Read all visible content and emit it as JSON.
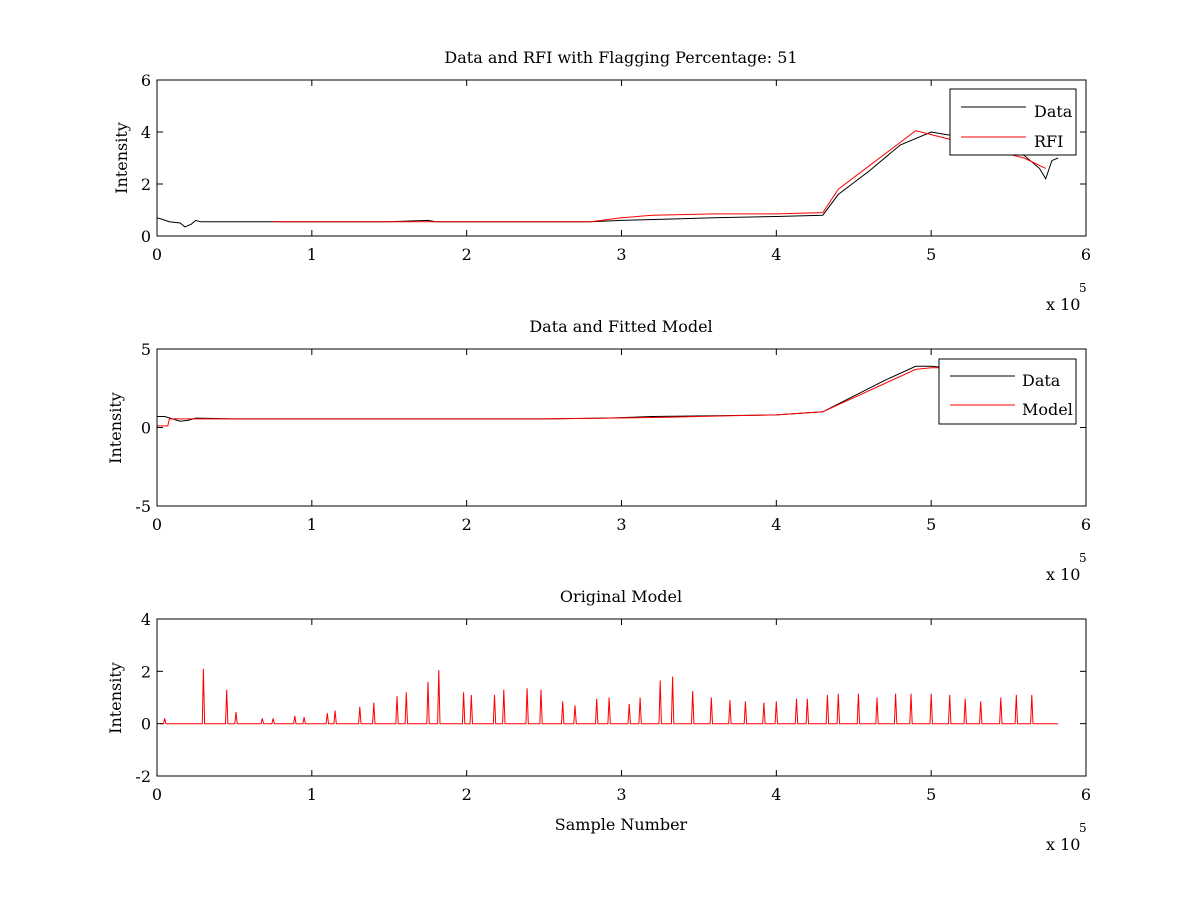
{
  "chart_data": [
    {
      "type": "line",
      "title": "Data and RFI with Flagging Percentage: 51",
      "xlabel": "",
      "ylabel": "Intensity",
      "xlim": [
        0,
        600000
      ],
      "ylim": [
        0,
        6
      ],
      "xticks": [
        "0",
        "1",
        "2",
        "3",
        "4",
        "5",
        "6"
      ],
      "yticks": [
        "0",
        "2",
        "4",
        "6"
      ],
      "x_multiplier": "x 10",
      "x_exponent": "5",
      "legend_position": "top-right",
      "series": [
        {
          "name": "Data",
          "color": "#000000",
          "x": [
            0,
            3000,
            8000,
            15000,
            18000,
            22000,
            25000,
            28000,
            50000,
            80000,
            100000,
            120000,
            150000,
            175000,
            180000,
            200000,
            230000,
            260000,
            280000,
            300000,
            330000,
            360000,
            400000,
            430000,
            440000,
            460000,
            480000,
            500000,
            520000,
            540000,
            560000,
            570000,
            574000,
            578000,
            582000
          ],
          "y": [
            0.7,
            0.65,
            0.55,
            0.5,
            0.35,
            0.45,
            0.6,
            0.55,
            0.55,
            0.55,
            0.55,
            0.55,
            0.55,
            0.6,
            0.55,
            0.55,
            0.55,
            0.55,
            0.55,
            0.6,
            0.65,
            0.7,
            0.75,
            0.8,
            1.6,
            2.5,
            3.5,
            4.0,
            3.8,
            3.4,
            3.1,
            2.6,
            2.2,
            2.9,
            3.0
          ]
        },
        {
          "name": "RFI",
          "color": "#ff0000",
          "x": [
            75000,
            90000,
            190000,
            200000,
            280000,
            300000,
            320000,
            360000,
            400000,
            430000,
            440000,
            460000,
            480000,
            490000,
            500000,
            520000,
            540000,
            560000,
            574000
          ],
          "y": [
            0.55,
            0.55,
            0.55,
            0.55,
            0.55,
            0.7,
            0.8,
            0.85,
            0.85,
            0.9,
            1.8,
            2.7,
            3.6,
            4.05,
            3.9,
            3.6,
            3.3,
            3.0,
            2.6
          ]
        }
      ]
    },
    {
      "type": "line",
      "title": "Data and Fitted Model",
      "xlabel": "",
      "ylabel": "Intensity",
      "xlim": [
        0,
        600000
      ],
      "ylim": [
        -5,
        5
      ],
      "xticks": [
        "0",
        "1",
        "2",
        "3",
        "4",
        "5",
        "6"
      ],
      "yticks": [
        "-5",
        "0",
        "5"
      ],
      "x_multiplier": "x 10",
      "x_exponent": "5",
      "legend_position": "top-right",
      "series": [
        {
          "name": "Data",
          "color": "#000000",
          "x": [
            0,
            5000,
            15000,
            20000,
            25000,
            50000,
            100000,
            150000,
            200000,
            250000,
            290000,
            320000,
            360000,
            400000,
            430000,
            450000,
            470000,
            490000,
            500000,
            510000
          ],
          "y": [
            0.7,
            0.7,
            0.4,
            0.45,
            0.6,
            0.55,
            0.55,
            0.55,
            0.55,
            0.55,
            0.6,
            0.7,
            0.75,
            0.8,
            1.0,
            2.0,
            3.0,
            3.9,
            3.9,
            3.8
          ]
        },
        {
          "name": "Model",
          "color": "#ff0000",
          "x": [
            0,
            7000,
            8000,
            50000,
            100000,
            150000,
            200000,
            250000,
            290000,
            330000,
            370000,
            400000,
            430000,
            450000,
            470000,
            490000,
            500000,
            510000
          ],
          "y": [
            0.1,
            0.1,
            0.55,
            0.55,
            0.55,
            0.55,
            0.55,
            0.55,
            0.6,
            0.65,
            0.75,
            0.8,
            1.0,
            1.9,
            2.8,
            3.7,
            3.8,
            3.8
          ]
        }
      ]
    },
    {
      "type": "line",
      "title": "Original Model",
      "xlabel": "Sample Number",
      "ylabel": "Intensity",
      "xlim": [
        0,
        600000
      ],
      "ylim": [
        -2,
        4
      ],
      "xticks": [
        "0",
        "1",
        "2",
        "3",
        "4",
        "5",
        "6"
      ],
      "yticks": [
        "-2",
        "0",
        "2",
        "4"
      ],
      "x_multiplier": "x 10",
      "x_exponent": "5",
      "series": [
        {
          "name": "",
          "color": "#ff0000",
          "baseline": 0,
          "x_start": 2000,
          "x_end": 582000,
          "spike_x": [
            5000,
            30000,
            45000,
            51000,
            68000,
            75000,
            89000,
            95000,
            110000,
            115000,
            131000,
            140000,
            155000,
            161000,
            175000,
            182000,
            198000,
            203000,
            218000,
            224000,
            239000,
            248000,
            262000,
            270000,
            284000,
            292000,
            305000,
            312000,
            325000,
            333000,
            346000,
            358000,
            370000,
            380000,
            392000,
            400000,
            413000,
            420000,
            433000,
            440000,
            453000,
            465000,
            477000,
            487000,
            500000,
            512000,
            522000,
            532000,
            545000,
            555000,
            565000
          ],
          "spike_y": [
            0.2,
            2.1,
            1.3,
            0.45,
            0.2,
            0.2,
            0.3,
            0.25,
            0.4,
            0.5,
            0.65,
            0.8,
            1.05,
            1.2,
            1.6,
            2.05,
            1.2,
            1.1,
            1.1,
            1.3,
            1.35,
            1.3,
            0.85,
            0.7,
            0.95,
            1.0,
            0.75,
            1.0,
            1.65,
            1.8,
            1.25,
            1.0,
            0.9,
            0.85,
            0.8,
            0.85,
            0.95,
            0.95,
            1.1,
            1.15,
            1.15,
            1.0,
            1.15,
            1.15,
            1.15,
            1.1,
            0.95,
            0.85,
            1.0,
            1.1,
            1.1
          ]
        }
      ]
    }
  ]
}
